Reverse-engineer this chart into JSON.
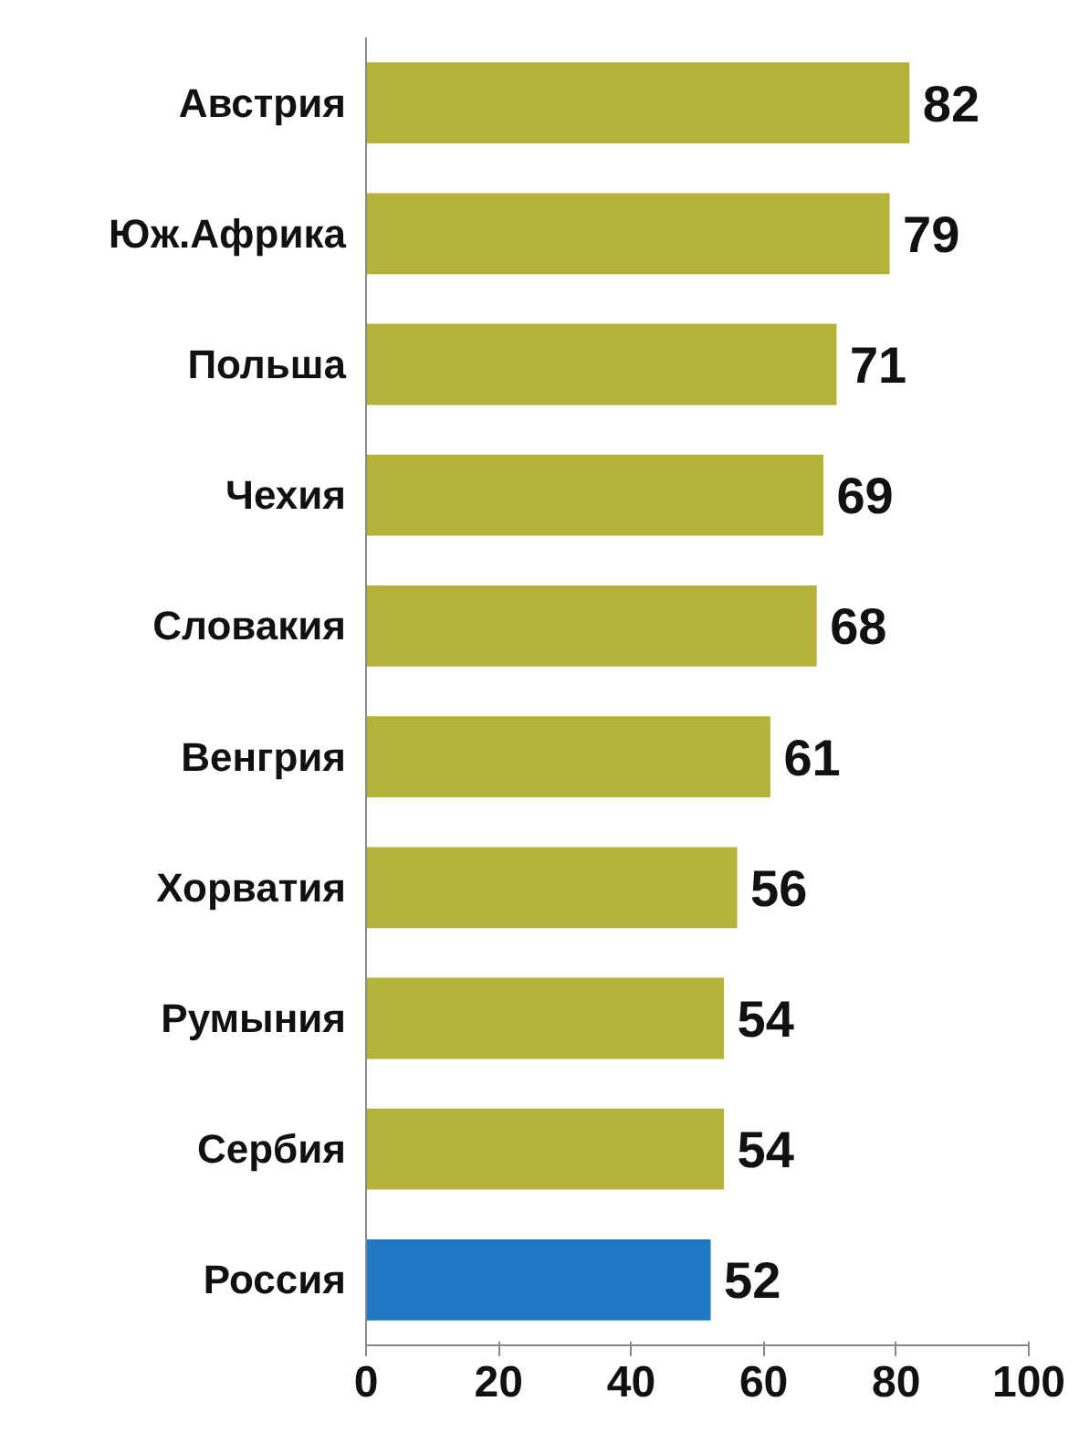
{
  "chart_data": {
    "type": "bar",
    "orientation": "horizontal",
    "categories": [
      "Австрия",
      "Юж.Африка",
      "Польша",
      "Чехия",
      "Словакия",
      "Венгрия",
      "Хорватия",
      "Румыния",
      "Сербия",
      "Россия"
    ],
    "values": [
      82,
      79,
      71,
      69,
      68,
      61,
      56,
      54,
      54,
      52
    ],
    "colors": [
      "#b5b23a",
      "#b5b23a",
      "#b5b23a",
      "#b5b23a",
      "#b5b23a",
      "#b5b23a",
      "#b5b23a",
      "#b5b23a",
      "#b5b23a",
      "#1f78c1"
    ],
    "xlim": [
      0,
      100
    ],
    "xticks": [
      0,
      20,
      40,
      60,
      80,
      100
    ],
    "data_labels": true,
    "grid": false
  }
}
